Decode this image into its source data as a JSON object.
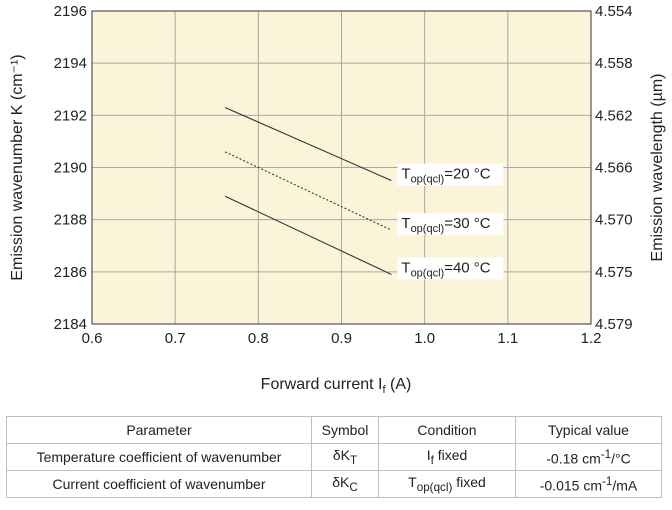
{
  "chart_data": {
    "type": "line",
    "x": [
      0.76,
      0.96
    ],
    "series": [
      {
        "name": "Top(qcl)=20 °C",
        "label_main": "T",
        "label_sub": "op(qcl)",
        "label_tail": "=20 °C",
        "values": [
          2192.3,
          2189.5
        ],
        "style": "solid"
      },
      {
        "name": "Top(qcl)=30 °C",
        "label_main": "T",
        "label_sub": "op(qcl)",
        "label_tail": "=30 °C",
        "values": [
          2190.6,
          2187.6
        ],
        "style": "dotted"
      },
      {
        "name": "Top(qcl)=40 °C",
        "label_main": "T",
        "label_sub": "op(qcl)",
        "label_tail": "=40 °C",
        "values": [
          2188.9,
          2185.9
        ],
        "style": "solid"
      }
    ],
    "xlim": [
      0.6,
      1.2
    ],
    "ylim": [
      2184,
      2196
    ],
    "xticks": [
      "0.6",
      "0.7",
      "0.8",
      "0.9",
      "1.0",
      "1.1",
      "1.2"
    ],
    "yticks": [
      "2184",
      "2186",
      "2188",
      "2190",
      "2192",
      "2194",
      "2196"
    ],
    "y2ticks": [
      "4.579",
      "4.575",
      "4.570",
      "4.566",
      "4.562",
      "4.558",
      "4.554"
    ],
    "xlabel_main": "Forward current I",
    "xlabel_sub": "f",
    "xlabel_tail": " (A)",
    "ylabel": "Emission wavenumber K (cm⁻¹)",
    "y2label": "Emission wavelength (µm)",
    "grid": true,
    "colors": {
      "plot_bg": "#fbf4d8",
      "line": "#333333",
      "grid": "#a8a8a8"
    }
  },
  "table": {
    "headers": [
      "Parameter",
      "Symbol",
      "Condition",
      "Typical value"
    ],
    "rows": [
      {
        "param": "Temperature coefficient of wavenumber",
        "sym_main": "δK",
        "sym_sub": "T",
        "cond_main": "I",
        "cond_sub": "f",
        "cond_tail": " fixed",
        "val_main": "-0.18 cm",
        "val_sup": "-1",
        "val_tail": "/°C"
      },
      {
        "param": "Current coefficient of wavenumber",
        "sym_main": "δK",
        "sym_sub": "C",
        "cond_main": "T",
        "cond_sub": "op(qcl)",
        "cond_tail": " fixed",
        "val_main": "-0.015 cm",
        "val_sup": "-1",
        "val_tail": "/mA"
      }
    ]
  }
}
